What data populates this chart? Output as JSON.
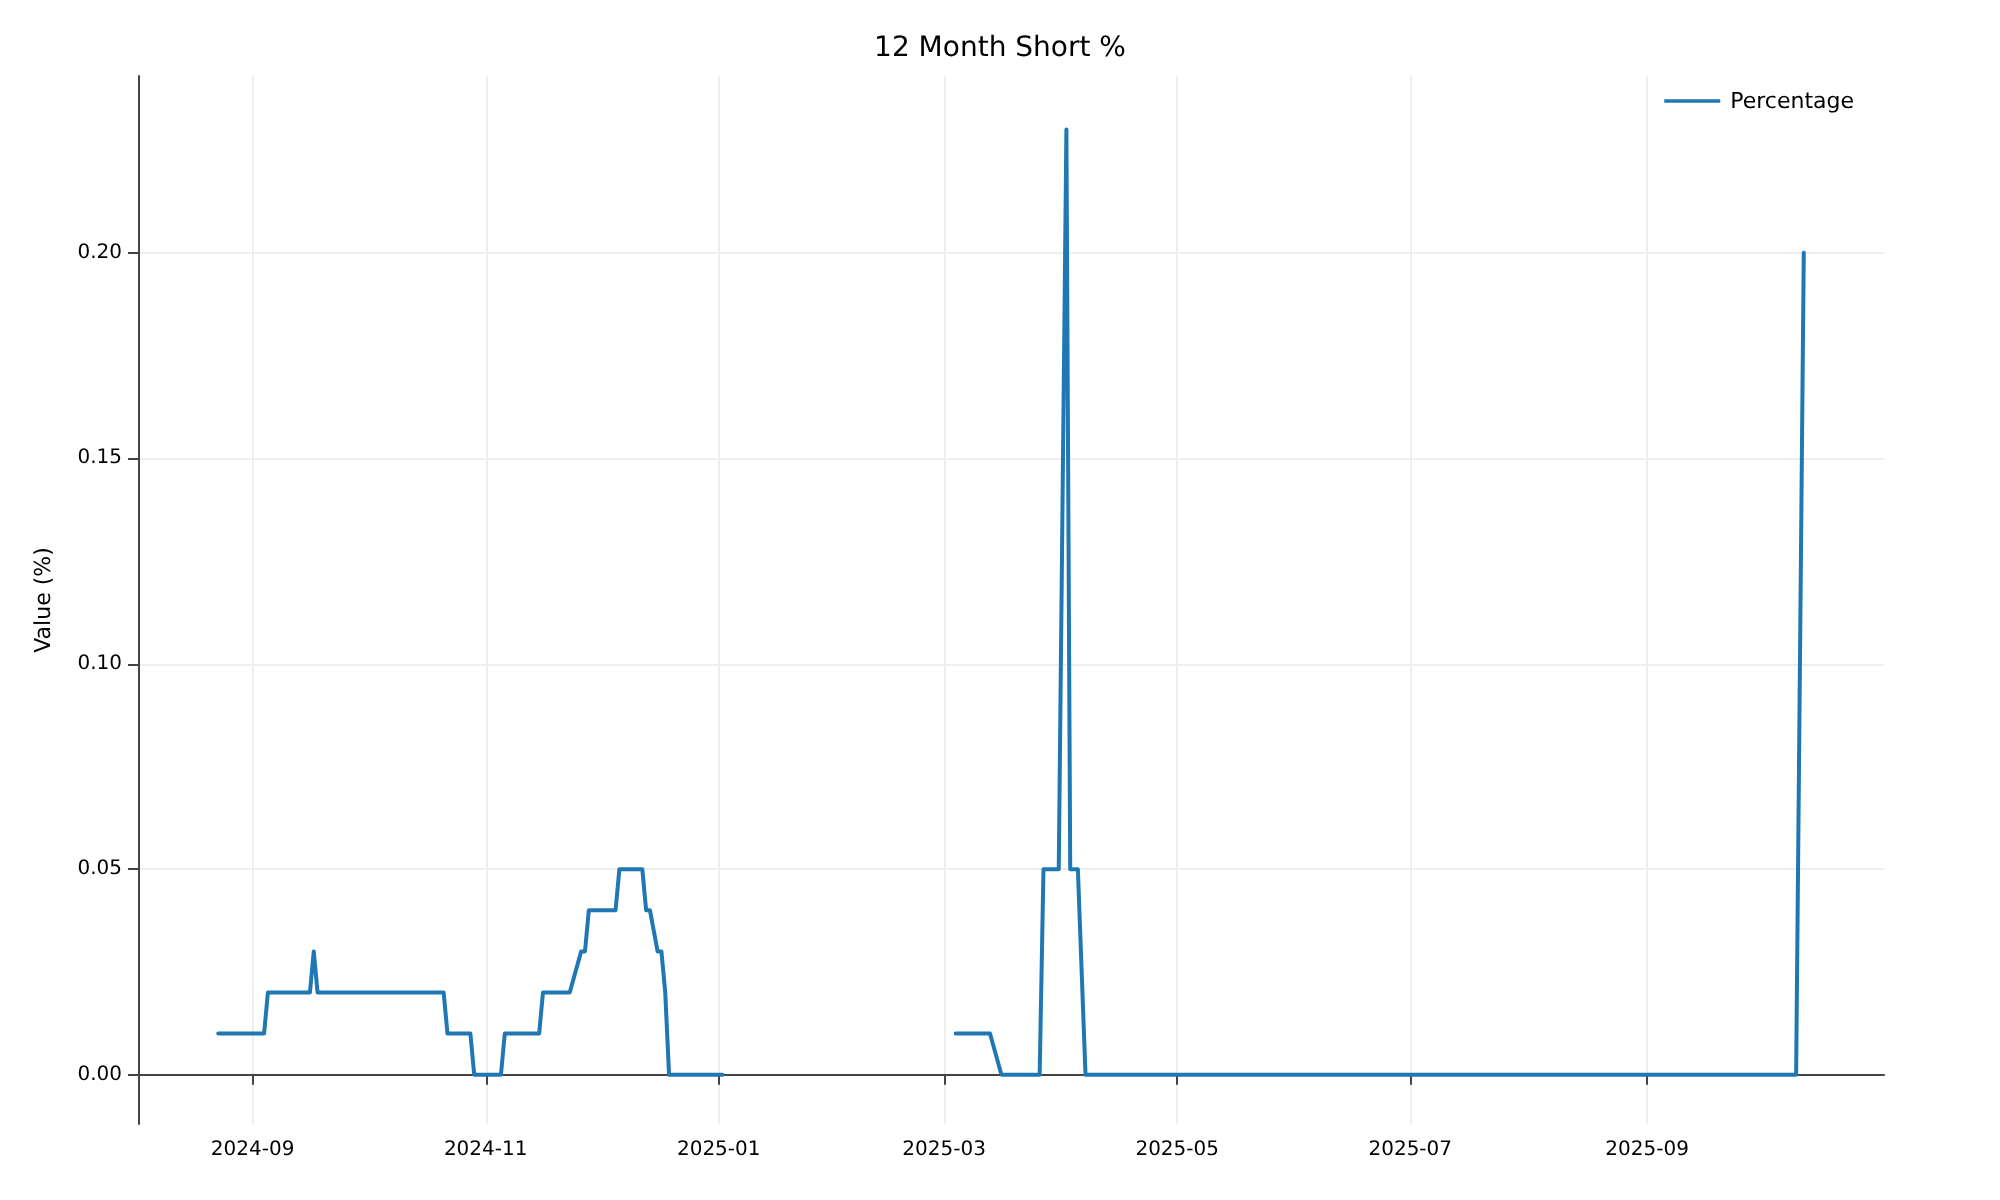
{
  "chart_data": {
    "type": "line",
    "title": "12 Month Short %",
    "ylabel": "Value (%)",
    "x": [
      "2024-08-23",
      "2024-09-04",
      "2024-09-05",
      "2024-09-16",
      "2024-09-17",
      "2024-09-18",
      "2024-10-21",
      "2024-10-22",
      "2024-10-28",
      "2024-10-29",
      "2024-11-05",
      "2024-11-06",
      "2024-11-15",
      "2024-11-16",
      "2024-11-23",
      "2024-11-26",
      "2024-11-27",
      "2024-11-28",
      "2024-12-05",
      "2024-12-06",
      "2024-12-12",
      "2024-12-13",
      "2024-12-14",
      "2024-12-16",
      "2024-12-17",
      "2024-12-18",
      "2024-12-19",
      "2025-01-02",
      "2025-02-01",
      "2025-03-04",
      "2025-03-13",
      "2025-03-16",
      "2025-03-26",
      "2025-03-27",
      "2025-03-31",
      "2025-04-02",
      "2025-04-03",
      "2025-04-05",
      "2025-04-07",
      "2025-10-10",
      "2025-10-12"
    ],
    "series": [
      {
        "name": "Percentage",
        "color": "#1f77b4",
        "values": [
          0.01,
          0.01,
          0.02,
          0.02,
          0.03,
          0.02,
          0.02,
          0.01,
          0.01,
          0,
          0,
          0.01,
          0.01,
          0.02,
          0.02,
          0.03,
          0.03,
          0.04,
          0.04,
          0.05,
          0.05,
          0.04,
          0.04,
          0.03,
          0.03,
          0.02,
          0,
          0,
          null,
          0.01,
          0.01,
          0,
          0,
          0.05,
          0.05,
          0.23,
          0.05,
          0.05,
          0,
          0,
          0.2
        ]
      }
    ],
    "xlim": [
      "2024-08-02",
      "2025-11-02"
    ],
    "xticks": [
      {
        "value": "2024-09-01",
        "label": "2024-09"
      },
      {
        "value": "2024-11-01",
        "label": "2024-11"
      },
      {
        "value": "2025-01-01",
        "label": "2025-01"
      },
      {
        "value": "2025-03-01",
        "label": "2025-03"
      },
      {
        "value": "2025-05-01",
        "label": "2025-05"
      },
      {
        "value": "2025-07-01",
        "label": "2025-07"
      },
      {
        "value": "2025-09-01",
        "label": "2025-09"
      }
    ],
    "ylim": [
      -0.012,
      0.243
    ],
    "yticks": [
      {
        "value": 0,
        "label": "0.00"
      },
      {
        "value": 0.05,
        "label": "0.05"
      },
      {
        "value": 0.1,
        "label": "0.10"
      },
      {
        "value": 0.15,
        "label": "0.15"
      },
      {
        "value": 0.2,
        "label": "0.20"
      }
    ],
    "grid": true,
    "legend": "top right",
    "marker": "none",
    "line_style": "solid"
  }
}
